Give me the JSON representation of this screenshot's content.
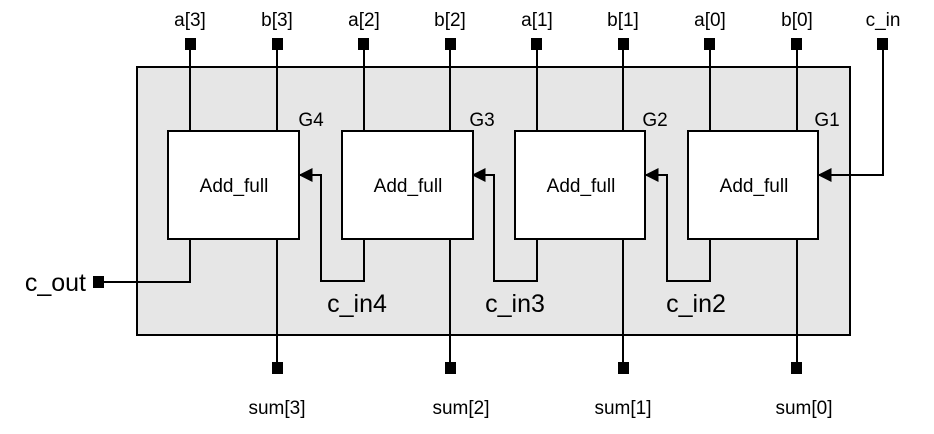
{
  "inputs": {
    "a3": "a[3]",
    "b3": "b[3]",
    "a2": "a[2]",
    "b2": "b[2]",
    "a1": "a[1]",
    "b1": "b[1]",
    "a0": "a[0]",
    "b0": "b[0]",
    "c_in": "c_in"
  },
  "outputs": {
    "sum3": "sum[3]",
    "sum2": "sum[2]",
    "sum1": "sum[1]",
    "sum0": "sum[0]",
    "c_out": "c_out"
  },
  "adders": [
    {
      "gate": "G4",
      "label": "Add_full"
    },
    {
      "gate": "G3",
      "label": "Add_full"
    },
    {
      "gate": "G2",
      "label": "Add_full"
    },
    {
      "gate": "G1",
      "label": "Add_full"
    }
  ],
  "carries": {
    "c_in4": "c_in4",
    "c_in3": "c_in3",
    "c_in2": "c_in2"
  },
  "colors": {
    "module_fill": "#e6e6e6",
    "stroke": "#000000",
    "adder_fill": "#ffffff"
  }
}
